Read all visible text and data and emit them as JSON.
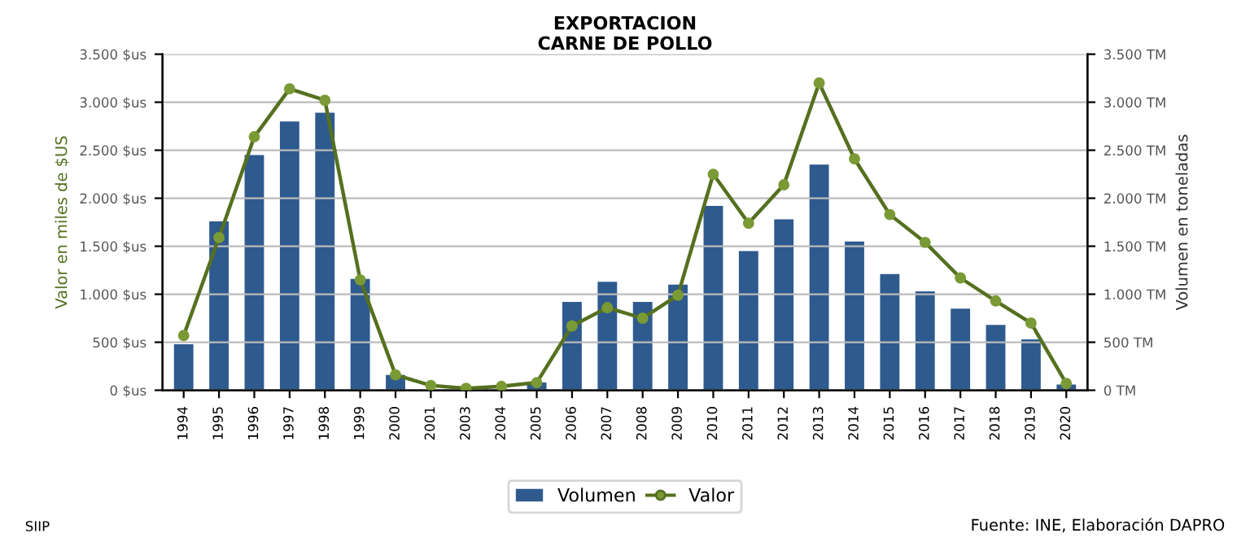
{
  "chart_data": {
    "type": "bar",
    "title": "EXPORTACION\nCARNE DE POLLO",
    "ylabel": "Valor en miles de $US",
    "y2label": "Volumen en toneladas",
    "categories": [
      "1994",
      "1995",
      "1996",
      "1997",
      "1998",
      "1999",
      "2000",
      "2001",
      "2003",
      "2004",
      "2005",
      "2006",
      "2007",
      "2008",
      "2009",
      "2010",
      "2011",
      "2012",
      "2013",
      "2014",
      "2015",
      "2016",
      "2017",
      "2018",
      "2019",
      "2020"
    ],
    "series": [
      {
        "name": "Volumen",
        "axis": "y2",
        "color": "#2e5a8e",
        "values": [
          480,
          1760,
          2450,
          2800,
          2890,
          1160,
          160,
          0,
          0,
          0,
          80,
          920,
          1130,
          920,
          1100,
          1920,
          1450,
          1780,
          2350,
          1550,
          1210,
          1030,
          850,
          680,
          530,
          60
        ]
      },
      {
        "name": "Valor",
        "type": "line",
        "axis": "y",
        "color": "#55701f",
        "marker": "circle",
        "values": [
          570,
          1590,
          2640,
          3140,
          3020,
          1150,
          160,
          50,
          20,
          40,
          80,
          670,
          860,
          750,
          990,
          2250,
          1740,
          2140,
          3200,
          2410,
          1830,
          1540,
          1170,
          930,
          700,
          70
        ]
      }
    ],
    "ylim": [
      0,
      3500
    ],
    "yticks": [
      {
        "value": 0,
        "label": "0 $us"
      },
      {
        "value": 500,
        "label": "500 $us"
      },
      {
        "value": 1000,
        "label": "1.000 $us"
      },
      {
        "value": 1500,
        "label": "1.500 $us"
      },
      {
        "value": 2000,
        "label": "2.000 $us"
      },
      {
        "value": 2500,
        "label": "2.500 $us"
      },
      {
        "value": 3000,
        "label": "3.000 $us"
      },
      {
        "value": 3500,
        "label": "3.500 $us"
      }
    ],
    "y2lim": [
      0,
      3500
    ],
    "y2ticks": [
      {
        "value": 0,
        "label": "0 TM"
      },
      {
        "value": 500,
        "label": "500 TM"
      },
      {
        "value": 1000,
        "label": "1.000 TM"
      },
      {
        "value": 1500,
        "label": "1.500 TM"
      },
      {
        "value": 2000,
        "label": "2.000 TM"
      },
      {
        "value": 2500,
        "label": "2.500 TM"
      },
      {
        "value": 3000,
        "label": "3.000 TM"
      },
      {
        "value": 3500,
        "label": "3.500 TM"
      }
    ],
    "grid": "y",
    "legend": "bottom",
    "annotations": [
      "SIIP",
      "Fuente: INE, Elaboración DAPRO"
    ]
  }
}
